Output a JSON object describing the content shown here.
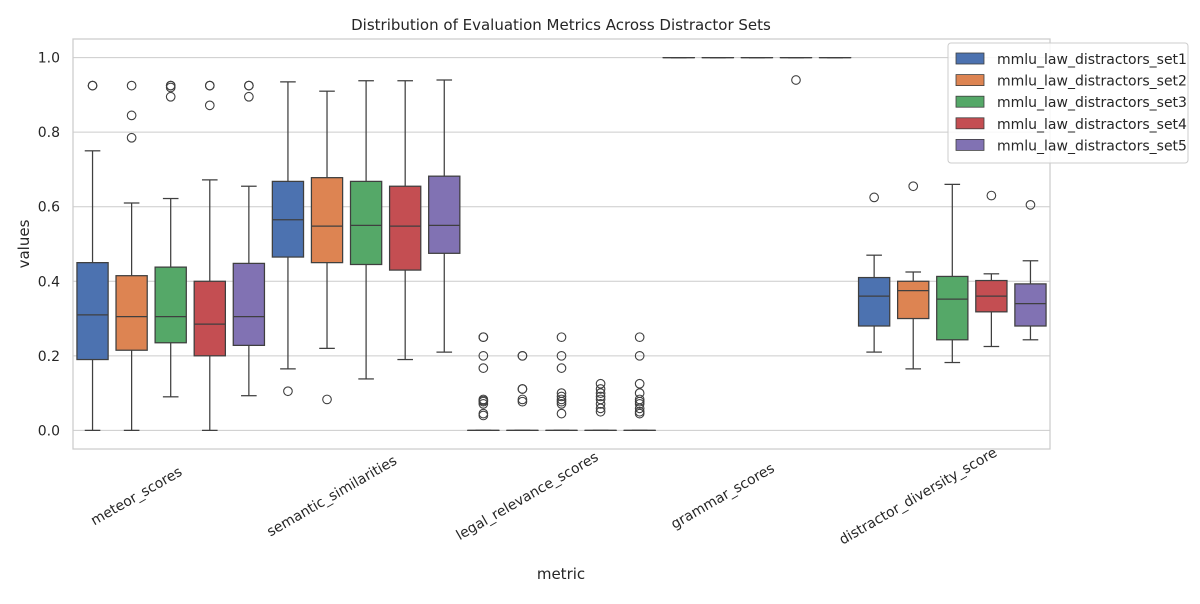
{
  "chart_data": {
    "type": "box",
    "title": "Distribution of Evaluation Metrics Across Distractor Sets",
    "xlabel": "metric",
    "ylabel": "values",
    "ylim": [
      -0.05,
      1.05
    ],
    "y_ticks": [
      "0.0",
      "0.2",
      "0.4",
      "0.6",
      "0.8",
      "1.0"
    ],
    "grid": true,
    "legend_position": "top-right",
    "categories": [
      "meteor_scores",
      "semantic_similarities",
      "legal_relevance_scores",
      "grammar_scores",
      "distractor_diversity_score"
    ],
    "series": [
      {
        "name": "mmlu_law_distractors_set1",
        "color": "#4c72b0",
        "boxes": [
          {
            "whisker_low": 0.0,
            "q1": 0.19,
            "median": 0.31,
            "q3": 0.45,
            "whisker_high": 0.75,
            "outliers": [
              0.925,
              0.925
            ]
          },
          {
            "whisker_low": 0.165,
            "q1": 0.465,
            "median": 0.565,
            "q3": 0.668,
            "whisker_high": 0.935,
            "outliers": [
              0.105
            ]
          },
          {
            "whisker_low": 0.0,
            "q1": 0.0,
            "median": 0.0,
            "q3": 0.0,
            "whisker_high": 0.0,
            "outliers": [
              0.25,
              0.25,
              0.2,
              0.167,
              0.083,
              0.08,
              0.077,
              0.071,
              0.045,
              0.04
            ]
          },
          {
            "whisker_low": 1.0,
            "q1": 1.0,
            "median": 1.0,
            "q3": 1.0,
            "whisker_high": 1.0,
            "outliers": []
          },
          {
            "whisker_low": 0.21,
            "q1": 0.28,
            "median": 0.36,
            "q3": 0.41,
            "whisker_high": 0.47,
            "outliers": [
              0.625
            ]
          }
        ]
      },
      {
        "name": "mmlu_law_distractors_set2",
        "color": "#dd8452",
        "boxes": [
          {
            "whisker_low": 0.0,
            "q1": 0.215,
            "median": 0.305,
            "q3": 0.415,
            "whisker_high": 0.61,
            "outliers": [
              0.925,
              0.845,
              0.785
            ]
          },
          {
            "whisker_low": 0.22,
            "q1": 0.45,
            "median": 0.548,
            "q3": 0.678,
            "whisker_high": 0.91,
            "outliers": [
              0.083
            ]
          },
          {
            "whisker_low": 0.0,
            "q1": 0.0,
            "median": 0.0,
            "q3": 0.0,
            "whisker_high": 0.0,
            "outliers": [
              0.2,
              0.2,
              0.111,
              0.111,
              0.083,
              0.077
            ]
          },
          {
            "whisker_low": 1.0,
            "q1": 1.0,
            "median": 1.0,
            "q3": 1.0,
            "whisker_high": 1.0,
            "outliers": []
          },
          {
            "whisker_low": 0.165,
            "q1": 0.3,
            "median": 0.375,
            "q3": 0.4,
            "whisker_high": 0.425,
            "outliers": [
              0.655
            ]
          }
        ]
      },
      {
        "name": "mmlu_law_distractors_set3",
        "color": "#55a868",
        "boxes": [
          {
            "whisker_low": 0.09,
            "q1": 0.235,
            "median": 0.305,
            "q3": 0.438,
            "whisker_high": 0.622,
            "outliers": [
              0.925,
              0.925,
              0.92,
              0.895
            ]
          },
          {
            "whisker_low": 0.138,
            "q1": 0.445,
            "median": 0.55,
            "q3": 0.668,
            "whisker_high": 0.938,
            "outliers": []
          },
          {
            "whisker_low": 0.0,
            "q1": 0.0,
            "median": 0.0,
            "q3": 0.0,
            "whisker_high": 0.0,
            "outliers": [
              0.25,
              0.2,
              0.167,
              0.1,
              0.091,
              0.083,
              0.077,
              0.071,
              0.045
            ]
          },
          {
            "whisker_low": 1.0,
            "q1": 1.0,
            "median": 1.0,
            "q3": 1.0,
            "whisker_high": 1.0,
            "outliers": []
          },
          {
            "whisker_low": 0.182,
            "q1": 0.243,
            "median": 0.352,
            "q3": 0.413,
            "whisker_high": 0.66,
            "outliers": []
          }
        ]
      },
      {
        "name": "mmlu_law_distractors_set4",
        "color": "#c44e52",
        "boxes": [
          {
            "whisker_low": 0.0,
            "q1": 0.2,
            "median": 0.285,
            "q3": 0.4,
            "whisker_high": 0.672,
            "outliers": [
              0.925,
              0.925,
              0.872
            ]
          },
          {
            "whisker_low": 0.19,
            "q1": 0.43,
            "median": 0.548,
            "q3": 0.655,
            "whisker_high": 0.938,
            "outliers": []
          },
          {
            "whisker_low": 0.0,
            "q1": 0.0,
            "median": 0.0,
            "q3": 0.0,
            "whisker_high": 0.0,
            "outliers": [
              0.125,
              0.111,
              0.1,
              0.091,
              0.083,
              0.071,
              0.059,
              0.05
            ]
          },
          {
            "whisker_low": 1.0,
            "q1": 1.0,
            "median": 1.0,
            "q3": 1.0,
            "whisker_high": 1.0,
            "outliers": [
              0.94
            ]
          },
          {
            "whisker_low": 0.225,
            "q1": 0.318,
            "median": 0.36,
            "q3": 0.402,
            "whisker_high": 0.42,
            "outliers": [
              0.63
            ]
          }
        ]
      },
      {
        "name": "mmlu_law_distractors_set5",
        "color": "#8172b3",
        "boxes": [
          {
            "whisker_low": 0.093,
            "q1": 0.228,
            "median": 0.305,
            "q3": 0.448,
            "whisker_high": 0.655,
            "outliers": [
              0.925,
              0.925,
              0.895
            ]
          },
          {
            "whisker_low": 0.21,
            "q1": 0.475,
            "median": 0.55,
            "q3": 0.682,
            "whisker_high": 0.94,
            "outliers": []
          },
          {
            "whisker_low": 0.0,
            "q1": 0.0,
            "median": 0.0,
            "q3": 0.0,
            "whisker_high": 0.0,
            "outliers": [
              0.25,
              0.2,
              0.125,
              0.1,
              0.083,
              0.077,
              0.071,
              0.059,
              0.05,
              0.045
            ]
          },
          {
            "whisker_low": 1.0,
            "q1": 1.0,
            "median": 1.0,
            "q3": 1.0,
            "whisker_high": 1.0,
            "outliers": []
          },
          {
            "whisker_low": 0.243,
            "q1": 0.28,
            "median": 0.34,
            "q3": 0.393,
            "whisker_high": 0.455,
            "outliers": [
              0.605
            ]
          }
        ]
      }
    ]
  }
}
